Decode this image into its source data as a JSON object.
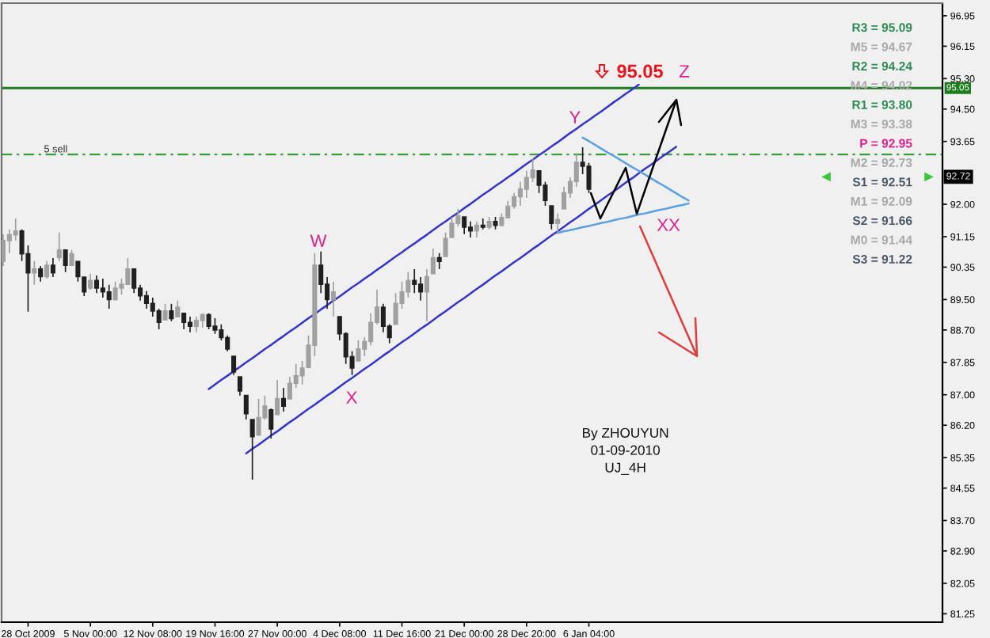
{
  "chart_data": {
    "type": "candlestick",
    "categories": [
      null,
      null,
      null,
      null,
      "28 Oct 2009",
      null,
      null,
      null,
      null,
      null,
      null,
      null,
      null,
      null,
      "5 Nov 00:00",
      null,
      null,
      null,
      null,
      null,
      null,
      null,
      null,
      null,
      "12 Nov 08:00",
      null,
      null,
      null,
      null,
      null,
      null,
      null,
      null,
      null,
      "19 Nov 16:00",
      null,
      null,
      null,
      null,
      null,
      null,
      null,
      null,
      null,
      "27 Nov 00:00",
      null,
      null,
      null,
      null,
      null,
      null,
      null,
      null,
      null,
      "4 Dec 08:00",
      null,
      null,
      null,
      null,
      null,
      null,
      null,
      null,
      null,
      "11 Dec 16:00",
      null,
      null,
      null,
      null,
      null,
      null,
      null,
      null,
      null,
      "21 Dec 00:00",
      null,
      null,
      null,
      null,
      null,
      null,
      null,
      null,
      null,
      "28 Dec 20:00",
      null,
      null,
      null,
      null,
      null,
      null,
      null,
      null,
      null,
      "6 Jan 04:00",
      null,
      null,
      null,
      null,
      null,
      null,
      null,
      null,
      null,
      null,
      null,
      null,
      null,
      null,
      null,
      null,
      null,
      null,
      null,
      null,
      null,
      null,
      null,
      null,
      null,
      null,
      null,
      null,
      null,
      null,
      null,
      null,
      null,
      null,
      null,
      null,
      null,
      null,
      null,
      null,
      null,
      null,
      null,
      null,
      null,
      null,
      null,
      null,
      null,
      null,
      null,
      null,
      null,
      null,
      null,
      null
    ],
    "ohlc": [
      [
        90.5,
        91.22,
        90.38,
        91.05
      ],
      [
        91.05,
        91.34,
        90.72,
        91.2
      ],
      [
        91.2,
        91.63,
        91.05,
        91.3
      ],
      [
        91.3,
        91.34,
        90.51,
        90.7
      ],
      [
        90.7,
        90.92,
        89.18,
        90.2
      ],
      [
        90.2,
        90.51,
        89.89,
        90.3
      ],
      [
        90.3,
        90.38,
        89.97,
        90.1
      ],
      [
        90.1,
        90.51,
        90.05,
        90.4
      ],
      [
        90.4,
        90.59,
        90.09,
        90.2
      ],
      [
        90.6,
        91.26,
        90.51,
        90.8
      ],
      [
        90.8,
        90.8,
        90.22,
        90.4
      ],
      [
        90.4,
        90.8,
        90.38,
        90.7
      ],
      [
        90.5,
        90.51,
        89.97,
        90.1
      ],
      [
        90.09,
        90.09,
        89.59,
        89.7
      ],
      [
        89.8,
        90.18,
        89.76,
        90.0
      ],
      [
        90.0,
        90.13,
        89.67,
        89.8
      ],
      [
        89.8,
        90.05,
        89.55,
        89.7
      ],
      [
        89.7,
        89.89,
        89.26,
        89.5
      ],
      [
        89.5,
        89.97,
        89.47,
        89.8
      ],
      [
        89.8,
        90.05,
        89.63,
        89.9
      ],
      [
        89.9,
        90.59,
        89.89,
        90.3
      ],
      [
        90.3,
        90.3,
        89.67,
        89.8
      ],
      [
        89.8,
        89.89,
        89.47,
        89.6
      ],
      [
        89.6,
        89.72,
        89.26,
        89.4
      ],
      [
        89.4,
        89.55,
        89.05,
        89.2
      ],
      [
        89.2,
        89.26,
        88.72,
        88.9
      ],
      [
        88.97,
        89.39,
        88.97,
        89.2
      ],
      [
        89.2,
        89.39,
        88.93,
        89.0
      ],
      [
        89.05,
        89.47,
        89.05,
        89.3
      ],
      [
        89.14,
        89.14,
        88.72,
        88.9
      ],
      [
        88.9,
        89.05,
        88.64,
        88.8
      ],
      [
        88.8,
        89.05,
        88.64,
        88.95
      ],
      [
        88.95,
        89.14,
        88.76,
        89.1
      ],
      [
        89.1,
        89.14,
        88.72,
        88.8
      ],
      [
        88.8,
        89.01,
        88.6,
        88.7
      ],
      [
        88.7,
        88.85,
        88.43,
        88.5
      ],
      [
        88.5,
        88.56,
        88.14,
        88.2
      ],
      [
        88.01,
        88.01,
        87.52,
        87.6
      ],
      [
        87.47,
        87.47,
        86.98,
        87.1
      ],
      [
        86.98,
        86.98,
        86.35,
        86.5
      ],
      [
        86.35,
        86.35,
        84.77,
        85.9
      ],
      [
        85.94,
        86.89,
        85.94,
        86.4
      ],
      [
        86.4,
        86.98,
        86.35,
        86.7
      ],
      [
        86.6,
        86.64,
        85.85,
        86.1
      ],
      [
        86.48,
        87.39,
        86.48,
        86.9
      ],
      [
        86.9,
        87.18,
        86.56,
        86.7
      ],
      [
        86.89,
        87.47,
        86.89,
        87.3
      ],
      [
        87.3,
        87.81,
        87.18,
        87.5
      ],
      [
        87.5,
        87.89,
        87.27,
        87.7
      ],
      [
        87.72,
        88.56,
        87.72,
        88.3
      ],
      [
        88.3,
        90.72,
        88.01,
        90.4
      ],
      [
        90.4,
        90.76,
        89.67,
        89.9
      ],
      [
        89.9,
        90.09,
        89.26,
        89.5
      ],
      [
        89.5,
        89.97,
        89.05,
        89.7
      ],
      [
        89.05,
        89.05,
        88.43,
        88.6
      ],
      [
        88.6,
        88.64,
        87.81,
        88.0
      ],
      [
        88.0,
        88.14,
        87.52,
        87.7
      ],
      [
        87.89,
        88.43,
        87.89,
        88.2
      ],
      [
        88.2,
        88.51,
        88.01,
        88.4
      ],
      [
        88.4,
        89.14,
        88.3,
        88.9
      ],
      [
        88.9,
        89.76,
        88.85,
        89.3
      ],
      [
        89.3,
        89.39,
        88.64,
        88.8
      ],
      [
        88.8,
        88.85,
        88.35,
        88.5
      ],
      [
        88.85,
        89.67,
        88.85,
        89.4
      ],
      [
        89.4,
        89.97,
        89.26,
        89.7
      ],
      [
        89.7,
        90.22,
        89.55,
        90.0
      ],
      [
        90.0,
        90.3,
        89.67,
        89.9
      ],
      [
        89.9,
        90.09,
        89.47,
        89.7
      ],
      [
        89.7,
        90.3,
        88.93,
        90.1
      ],
      [
        90.18,
        90.84,
        90.18,
        90.6
      ],
      [
        90.6,
        90.72,
        90.3,
        90.5
      ],
      [
        90.63,
        91.26,
        90.63,
        91.1
      ],
      [
        91.13,
        91.67,
        91.13,
        91.5
      ],
      [
        91.5,
        91.88,
        91.42,
        91.7
      ],
      [
        91.67,
        91.67,
        91.22,
        91.4
      ],
      [
        91.4,
        91.55,
        91.13,
        91.3
      ],
      [
        91.3,
        91.55,
        91.13,
        91.45
      ],
      [
        91.45,
        91.63,
        91.34,
        91.4
      ],
      [
        91.4,
        91.67,
        91.34,
        91.55
      ],
      [
        91.55,
        91.67,
        91.34,
        91.45
      ],
      [
        91.45,
        91.76,
        91.42,
        91.65
      ],
      [
        91.65,
        92.09,
        91.63,
        91.95
      ],
      [
        91.95,
        92.3,
        91.88,
        92.2
      ],
      [
        92.2,
        92.59,
        91.96,
        92.4
      ],
      [
        92.4,
        92.88,
        92.17,
        92.7
      ],
      [
        92.7,
        93.21,
        92.59,
        92.9
      ],
      [
        92.88,
        92.88,
        92.3,
        92.5
      ],
      [
        92.5,
        92.59,
        91.96,
        92.1
      ],
      [
        91.96,
        91.96,
        91.34,
        91.5
      ],
      [
        91.5,
        91.76,
        91.26,
        91.6
      ],
      [
        91.88,
        92.46,
        91.88,
        92.3
      ],
      [
        92.3,
        92.71,
        92.17,
        92.6
      ],
      [
        92.6,
        93.34,
        92.46,
        93.1
      ],
      [
        93.1,
        93.5,
        92.79,
        93.0
      ],
      [
        93.0,
        93.09,
        92.3,
        92.4
      ],
      null,
      null,
      null,
      null,
      null,
      null,
      null,
      null,
      null,
      null,
      null,
      null,
      null,
      null,
      null,
      null,
      null,
      null,
      null,
      null,
      null,
      null,
      null,
      null,
      null,
      null,
      null,
      null,
      null,
      null,
      null,
      null,
      null,
      null,
      null,
      null,
      null,
      null,
      null,
      null,
      null,
      null,
      null,
      null,
      null,
      null,
      null,
      null,
      null,
      null,
      null,
      null,
      null,
      null,
      null,
      null
    ],
    "colors": [
      "#a0a0a0",
      "#a0a0a0",
      "#a0a0a0",
      "#202020",
      "#202020",
      "#a0a0a0",
      "#202020",
      "#a0a0a0",
      "#202020",
      "#a0a0a0",
      "#202020",
      "#a0a0a0",
      "#202020",
      "#202020",
      "#a0a0a0",
      "#202020",
      "#202020",
      "#202020",
      "#a0a0a0",
      "#a0a0a0",
      "#a0a0a0",
      "#202020",
      "#202020",
      "#202020",
      "#202020",
      "#202020",
      "#a0a0a0",
      "#202020",
      "#a0a0a0",
      "#202020",
      "#202020",
      "#a0a0a0",
      "#a0a0a0",
      "#202020",
      "#202020",
      "#202020",
      "#202020",
      "#202020",
      "#202020",
      "#202020",
      "#202020",
      "#a0a0a0",
      "#a0a0a0",
      "#202020",
      "#a0a0a0",
      "#202020",
      "#a0a0a0",
      "#a0a0a0",
      "#a0a0a0",
      "#a0a0a0",
      "#a0a0a0",
      "#202020",
      "#202020",
      "#a0a0a0",
      "#202020",
      "#202020",
      "#202020",
      "#a0a0a0",
      "#a0a0a0",
      "#a0a0a0",
      "#a0a0a0",
      "#202020",
      "#202020",
      "#a0a0a0",
      "#a0a0a0",
      "#a0a0a0",
      "#202020",
      "#202020",
      "#a0a0a0",
      "#a0a0a0",
      "#202020",
      "#a0a0a0",
      "#a0a0a0",
      "#a0a0a0",
      "#202020",
      "#202020",
      "#a0a0a0",
      "#202020",
      "#a0a0a0",
      "#202020",
      "#a0a0a0",
      "#a0a0a0",
      "#a0a0a0",
      "#a0a0a0",
      "#a0a0a0",
      "#a0a0a0",
      "#202020",
      "#202020",
      "#202020",
      "#a0a0a0",
      "#a0a0a0",
      "#a0a0a0",
      "#a0a0a0",
      "#202020",
      "#202020",
      null,
      null,
      null,
      null,
      null,
      null,
      null,
      null,
      null,
      null,
      null,
      null,
      null,
      null,
      null,
      null,
      null,
      null,
      null,
      null,
      null,
      null,
      null,
      null,
      null,
      null,
      null,
      null,
      null,
      null,
      null,
      null,
      null,
      null,
      null,
      null,
      null,
      null,
      null,
      null,
      null,
      null,
      null,
      null,
      null,
      null,
      null,
      null,
      null,
      null,
      null,
      null,
      null,
      null,
      null,
      null
    ],
    "series": [
      {
        "type": "line",
        "color": "#3434c8",
        "values": [
          null,
          null,
          null,
          null,
          null,
          null,
          null,
          null,
          null,
          null,
          null,
          null,
          null,
          null,
          null,
          null,
          null,
          null,
          null,
          null,
          null,
          null,
          null,
          null,
          null,
          null,
          null,
          null,
          null,
          null,
          null,
          null,
          null,
          87.15,
          87.27,
          87.39,
          87.5,
          87.62,
          87.73,
          87.85,
          87.96,
          88.08,
          88.2,
          88.31,
          88.43,
          88.54,
          88.66,
          88.77,
          88.89,
          89.01,
          89.12,
          89.24,
          89.35,
          89.47,
          89.58,
          89.7,
          89.82,
          89.93,
          90.05,
          90.16,
          90.28,
          90.39,
          90.51,
          90.63,
          90.74,
          90.86,
          90.97,
          91.09,
          91.2,
          91.32,
          91.44,
          91.55,
          91.67,
          91.78,
          91.9,
          92.01,
          92.13,
          92.25,
          92.36,
          92.48,
          92.59,
          92.71,
          92.82,
          92.94,
          93.06,
          93.17,
          93.29,
          93.4,
          93.52,
          93.63,
          93.75,
          93.87,
          93.98,
          94.1,
          94.21,
          94.33,
          94.44,
          94.56,
          94.68,
          94.79,
          94.91,
          95.02,
          95.14,
          null,
          null,
          null,
          null,
          null,
          null,
          null,
          null,
          null,
          null,
          null,
          null,
          null,
          null,
          null,
          null,
          null,
          null,
          null,
          null,
          null,
          null,
          null,
          null,
          null,
          null,
          null,
          null,
          null,
          null,
          null,
          null,
          null,
          null,
          null,
          null,
          null,
          null,
          null,
          null,
          null,
          null,
          null,
          null,
          null,
          null,
          null,
          null
        ]
      },
      {
        "type": "line",
        "color": "#3434c8",
        "values": [
          null,
          null,
          null,
          null,
          null,
          null,
          null,
          null,
          null,
          null,
          null,
          null,
          null,
          null,
          null,
          null,
          null,
          null,
          null,
          null,
          null,
          null,
          null,
          null,
          null,
          null,
          null,
          null,
          null,
          null,
          null,
          null,
          null,
          null,
          null,
          null,
          null,
          null,
          null,
          85.46,
          85.58,
          85.69,
          85.81,
          85.93,
          86.04,
          86.16,
          86.28,
          86.39,
          86.51,
          86.63,
          86.74,
          86.86,
          86.98,
          87.09,
          87.21,
          87.33,
          87.44,
          87.56,
          87.68,
          87.79,
          87.91,
          88.03,
          88.14,
          88.26,
          88.38,
          88.49,
          88.61,
          88.73,
          88.84,
          88.96,
          89.08,
          89.19,
          89.31,
          89.43,
          89.54,
          89.66,
          89.78,
          89.89,
          90.01,
          90.13,
          90.24,
          90.36,
          90.48,
          90.59,
          90.71,
          90.83,
          90.94,
          91.06,
          91.18,
          91.29,
          91.41,
          91.53,
          91.64,
          91.76,
          91.88,
          91.99,
          92.11,
          92.23,
          92.34,
          92.46,
          92.58,
          92.69,
          92.81,
          92.93,
          93.04,
          93.16,
          93.28,
          93.39,
          93.51,
          null,
          null,
          null,
          null,
          null,
          null,
          null,
          null,
          null,
          null,
          null,
          null,
          null,
          null,
          null,
          null,
          null,
          null,
          null,
          null,
          null,
          null,
          null,
          null,
          null,
          null,
          null,
          null,
          null,
          null,
          null,
          null,
          null,
          null,
          null,
          null,
          null,
          null,
          null,
          null,
          null,
          null
        ]
      },
      {
        "type": "line",
        "color": "#5aa0e0",
        "values": [
          null,
          null,
          null,
          null,
          null,
          null,
          null,
          null,
          null,
          null,
          null,
          null,
          null,
          null,
          null,
          null,
          null,
          null,
          null,
          null,
          null,
          null,
          null,
          null,
          null,
          null,
          null,
          null,
          null,
          null,
          null,
          null,
          null,
          null,
          null,
          null,
          null,
          null,
          null,
          null,
          null,
          null,
          null,
          null,
          null,
          null,
          null,
          null,
          null,
          null,
          null,
          null,
          null,
          null,
          null,
          null,
          null,
          null,
          null,
          null,
          null,
          null,
          null,
          null,
          null,
          null,
          null,
          null,
          null,
          null,
          null,
          null,
          null,
          null,
          null,
          null,
          null,
          null,
          null,
          null,
          null,
          null,
          null,
          null,
          null,
          null,
          null,
          null,
          null,
          null,
          null,
          null,
          null,
          93.75,
          93.66,
          93.56,
          93.46,
          93.36,
          93.27,
          93.17,
          93.07,
          92.97,
          92.88,
          92.78,
          92.68,
          92.58,
          92.49,
          92.39,
          92.29,
          92.19,
          92.1,
          null,
          null,
          null,
          null,
          null,
          null,
          null,
          null,
          null,
          null,
          null,
          null,
          null,
          null,
          null,
          null,
          null,
          null,
          null,
          null,
          null,
          null,
          null,
          null,
          null,
          null,
          null,
          null,
          null,
          null,
          null,
          null,
          null,
          null,
          null,
          null,
          null,
          null,
          null,
          null
        ]
      },
      {
        "type": "line",
        "color": "#5aa0e0",
        "values": [
          null,
          null,
          null,
          null,
          null,
          null,
          null,
          null,
          null,
          null,
          null,
          null,
          null,
          null,
          null,
          null,
          null,
          null,
          null,
          null,
          null,
          null,
          null,
          null,
          null,
          null,
          null,
          null,
          null,
          null,
          null,
          null,
          null,
          null,
          null,
          null,
          null,
          null,
          null,
          null,
          null,
          null,
          null,
          null,
          null,
          null,
          null,
          null,
          null,
          null,
          null,
          null,
          null,
          null,
          null,
          null,
          null,
          null,
          null,
          null,
          null,
          null,
          null,
          null,
          null,
          null,
          null,
          null,
          null,
          null,
          null,
          null,
          null,
          null,
          null,
          null,
          null,
          null,
          null,
          null,
          null,
          null,
          null,
          null,
          null,
          null,
          null,
          null,
          null,
          91.25,
          91.29,
          91.32,
          91.36,
          91.4,
          91.43,
          91.47,
          91.51,
          91.54,
          91.58,
          91.62,
          91.65,
          91.69,
          91.73,
          91.76,
          91.8,
          91.84,
          91.87,
          91.91,
          91.95,
          91.98,
          92.02,
          null,
          null,
          null,
          null,
          null,
          null,
          null,
          null,
          null,
          null,
          null,
          null,
          null,
          null,
          null,
          null,
          null,
          null,
          null,
          null,
          null,
          null,
          null,
          null,
          null,
          null,
          null,
          null,
          null,
          null,
          null,
          null,
          null,
          null,
          null,
          null,
          null,
          null,
          null,
          null
        ]
      }
    ],
    "ref_lines": [
      {
        "axis": "y",
        "value": 95.05,
        "label": "95.05",
        "color": "#1e7d1e",
        "line_style": "solid"
      },
      {
        "axis": "y",
        "value": 93.31,
        "label": "5 sell",
        "color": "#3aa03a",
        "line_style": "dashed"
      }
    ],
    "annotations": [
      "95.05",
      "W",
      "X",
      "Y",
      "Z",
      "XX",
      {
        "text": "92.72",
        "y": 92.72
      },
      "R3 = 95.09",
      "M5 = 94.67",
      "R2 = 94.24",
      "M4 = 94.02",
      "R1 = 93.80",
      "M3 = 93.38",
      "P = 92.95",
      "M2 = 92.73",
      "S1 = 92.51",
      "M1 = 92.09",
      "S2 = 91.66",
      "M0 = 91.44",
      "S3 = 91.22",
      "By ZHOUYUN",
      "01-09-2010",
      "UJ_4H"
    ],
    "ylim": [
      81.03,
      97.28
    ],
    "yticks": [
      {
        "value": 96.95,
        "label": "96.95"
      },
      {
        "value": 96.15,
        "label": "96.15"
      },
      {
        "value": 95.3,
        "label": "95.30"
      },
      {
        "value": 94.5,
        "label": "94.50"
      },
      {
        "value": 93.65,
        "label": "93.65"
      },
      {
        "value": 92.0,
        "label": "92.00"
      },
      {
        "value": 91.15,
        "label": "91.15"
      },
      {
        "value": 90.35,
        "label": "90.35"
      },
      {
        "value": 89.5,
        "label": "89.50"
      },
      {
        "value": 88.7,
        "label": "88.70"
      },
      {
        "value": 87.85,
        "label": "87.85"
      },
      {
        "value": 87.0,
        "label": "87.00"
      },
      {
        "value": 86.2,
        "label": "86.20"
      },
      {
        "value": 85.35,
        "label": "85.35"
      },
      {
        "value": 84.55,
        "label": "84.55"
      },
      {
        "value": 83.7,
        "label": "83.70"
      },
      {
        "value": 82.9,
        "label": "82.90"
      },
      {
        "value": 82.05,
        "label": "82.05"
      },
      {
        "value": 81.25,
        "label": "81.25"
      }
    ]
  }
}
